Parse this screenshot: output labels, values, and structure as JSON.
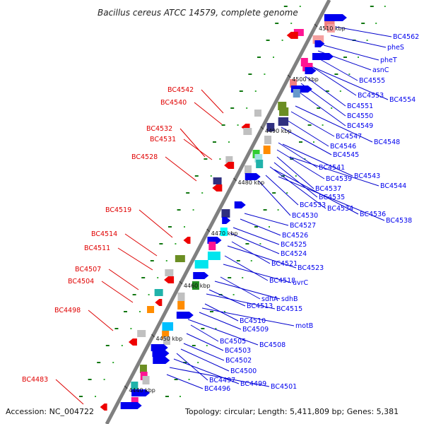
{
  "title": "Bacillus cereus ATCC 14579, complete genome",
  "footer": {
    "accession": "Accession: NC_004722",
    "topology": "Topology: circular; Length: 5,411,809 bp; Genes: 5,381"
  },
  "colors": {
    "backbone": "#808080",
    "forward_gene": "#0000ee",
    "reverse_gene": "#ee0000",
    "forward_label": "#0000ee",
    "reverse_label": "#e00000",
    "leader_forward": "#0000cc",
    "leader_reverse": "#dd0000",
    "dot_green": "#33aa33",
    "dot_darkgreen": "#117711"
  },
  "scale_ticks": [
    "4440 kbp",
    "4450 kbp",
    "4460 kbp",
    "4470 kbp",
    "4480 kbp",
    "4490 kbp",
    "4500 kbp",
    "4510 kbp"
  ],
  "forward_labels": [
    "BC4562",
    "pheS",
    "pheT",
    "asnC",
    "BC4555",
    "BC4554",
    "BC4553",
    "BC4551",
    "BC4550",
    "BC4549",
    "BC4548",
    "BC4547",
    "BC4546",
    "BC4545",
    "BC4543",
    "BC4541",
    "BC4544",
    "BC4539",
    "BC4537",
    "BC4535",
    "BC4534",
    "BC4536",
    "BC4533",
    "BC4538",
    "BC4530",
    "BC4527",
    "BC4526",
    "BC4525",
    "BC4524",
    "BC4521",
    "BC4523",
    "BC4518",
    "uvrC",
    "sdhA",
    "sdhB",
    "BC4513",
    "BC4515",
    "BC4510",
    "motB",
    "BC4509",
    "BC4508",
    "BC4505",
    "BC4503",
    "BC4502",
    "BC4500",
    "BC4497",
    "BC4499",
    "BC4501",
    "BC4496"
  ],
  "reverse_labels": [
    "BC4542",
    "BC4540",
    "BC4532",
    "BC4531",
    "BC4528",
    "BC4519",
    "BC4514",
    "BC4511",
    "BC4507",
    "BC4504",
    "BC4498",
    "BC4483"
  ]
}
